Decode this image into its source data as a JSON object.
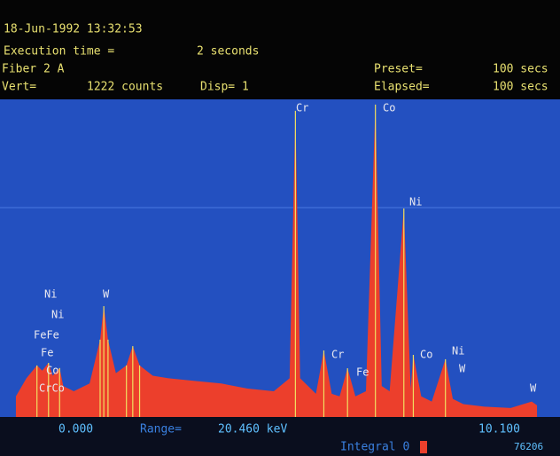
{
  "screen": {
    "datetime": "18-Jun-1992 13:32:53",
    "execution_label": "Execution time =",
    "execution_value": "2 seconds",
    "sample": "Fiber 2 A",
    "preset_label": "Preset=",
    "preset_value": "100 secs",
    "vert_label": "Vert=",
    "vert_value": "1222 counts",
    "disp": "Disp= 1",
    "elapsed_label": "Elapsed=",
    "elapsed_value": "100 secs",
    "range_label": "Range=",
    "range_value": "20.460 keV",
    "integral": "Integral 0",
    "counter": "76206"
  },
  "chart_data": {
    "type": "spectrum",
    "color": "#ec3f2c",
    "background": "#2350c0",
    "xlim": [
      0,
      10.1
    ],
    "xticks": [
      {
        "value": 0,
        "label": "0.000"
      },
      {
        "value": 10.1,
        "label": "10.100"
      }
    ],
    "ylim": [
      0,
      1222
    ],
    "peak_labels": [
      "Ni",
      "Ni",
      "FeFe",
      "Fe",
      "Co",
      "CrCo",
      "W",
      "Cr",
      "Co",
      "Ni",
      "Cr",
      "Fe",
      "Co",
      "Ni",
      "W",
      "W"
    ],
    "x": [
      0.1,
      0.3,
      0.5,
      0.6,
      0.72,
      0.8,
      0.93,
      1.0,
      1.2,
      1.5,
      1.7,
      1.77,
      1.85,
      2.0,
      2.2,
      2.32,
      2.45,
      2.7,
      3.0,
      3.5,
      4.0,
      4.5,
      5.0,
      5.3,
      5.41,
      5.5,
      5.8,
      5.95,
      6.1,
      6.25,
      6.4,
      6.55,
      6.75,
      6.93,
      7.05,
      7.2,
      7.47,
      7.6,
      7.65,
      7.8,
      8.0,
      8.26,
      8.4,
      8.6,
      9.0,
      9.5,
      9.9,
      10.0
    ],
    "values": [
      80,
      150,
      200,
      180,
      210,
      160,
      190,
      120,
      100,
      130,
      300,
      430,
      300,
      170,
      200,
      275,
      200,
      160,
      150,
      140,
      130,
      110,
      100,
      150,
      1188,
      150,
      90,
      258,
      90,
      80,
      189,
      80,
      100,
      1212,
      120,
      100,
      809,
      110,
      241,
      80,
      60,
      224,
      70,
      50,
      40,
      35,
      60,
      45
    ]
  }
}
